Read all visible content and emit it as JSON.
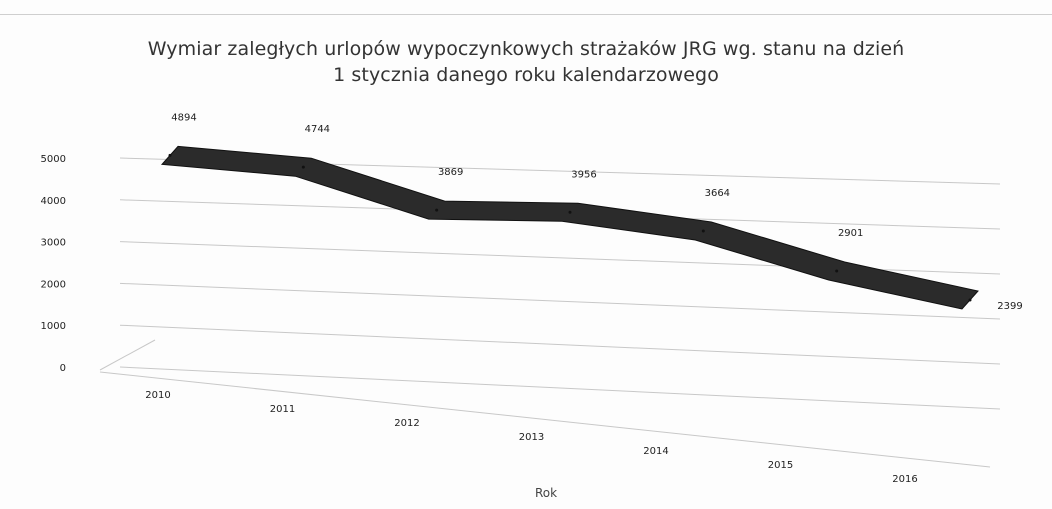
{
  "chart_data": {
    "type": "line",
    "style": "3d-ribbon",
    "title_line1": "Wymiar zaległych urlopów wypoczynkowych  strażaków JRG wg. stanu na dzień",
    "title_line2": "1 stycznia danego roku kalendarzowego",
    "xlabel": "Rok",
    "ylabel": "",
    "categories": [
      "2010",
      "2011",
      "2012",
      "2013",
      "2014",
      "2015",
      "2016"
    ],
    "values": [
      4894,
      4744,
      3869,
      3956,
      3664,
      2901,
      2399
    ],
    "yticks": [
      "0",
      "1000",
      "2000",
      "3000",
      "4000",
      "5000"
    ],
    "ylim": [
      0,
      5000
    ],
    "grid": true,
    "legend": "none",
    "ribbon_color": "#2b2b2b"
  }
}
